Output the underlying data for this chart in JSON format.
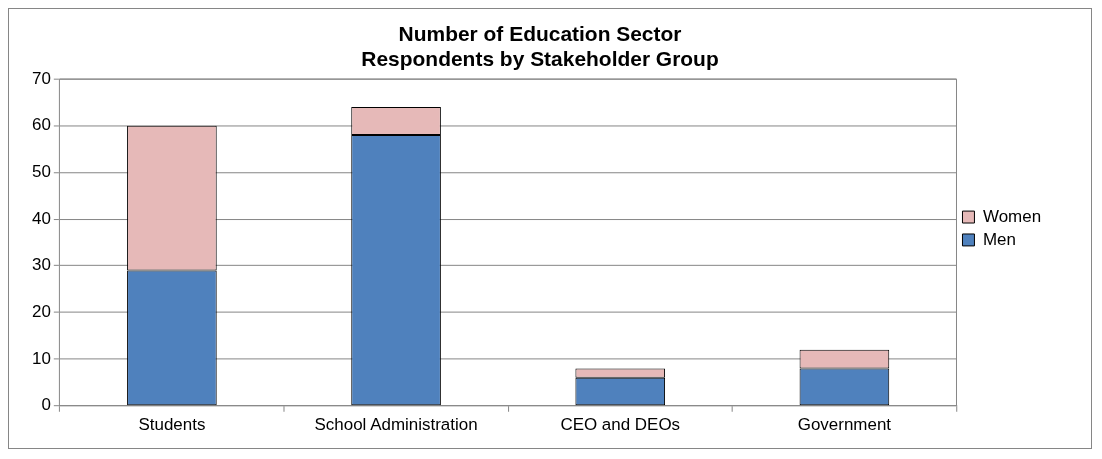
{
  "chart_data": {
    "type": "bar",
    "title": "Number of Education Sector\nRespondents by Stakeholder Group",
    "categories": [
      "Students",
      "School Administration",
      "CEO and DEOs",
      "Government"
    ],
    "series": [
      {
        "name": "Men",
        "color": "#4f81bd",
        "values": [
          29,
          58,
          6,
          8
        ]
      },
      {
        "name": "Women",
        "color": "#e6b9b8",
        "values": [
          31,
          6,
          2,
          4
        ]
      }
    ],
    "stacked": true,
    "ylim": [
      0,
      70
    ],
    "yticks": [
      0,
      10,
      20,
      30,
      40,
      50,
      60,
      70
    ],
    "grid": "y",
    "legend": "right"
  }
}
